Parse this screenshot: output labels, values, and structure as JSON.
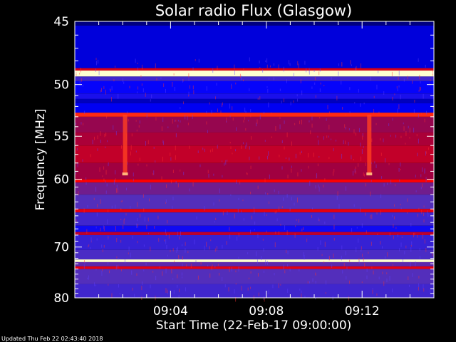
{
  "chart_data": {
    "type": "heatmap",
    "title": "Solar radio Flux (Glasgow)",
    "xlabel": "Start Time (22-Feb-17 09:00:00)",
    "ylabel": "Frequency [MHz]",
    "xlim_minutes": [
      0,
      15
    ],
    "ylim": [
      45,
      80
    ],
    "x_ticks": [
      {
        "minutes": 4,
        "label": "09:04"
      },
      {
        "minutes": 8,
        "label": "09:08"
      },
      {
        "minutes": 12,
        "label": "09:12"
      }
    ],
    "y_ticks": [
      {
        "value": 45,
        "label": "45"
      },
      {
        "value": 50,
        "label": "50"
      },
      {
        "value": 55,
        "label": "55"
      },
      {
        "value": 60,
        "label": "60"
      },
      {
        "value": 70,
        "label": "70"
      },
      {
        "value": 80,
        "label": "80"
      }
    ],
    "colormap": [
      "#000080",
      "#0000ff",
      "#5030c0",
      "#a00040",
      "#ff0000",
      "#ff8040",
      "#ffffd0"
    ],
    "frequency_bands": [
      {
        "from": 45.0,
        "to": 45.3,
        "level": 0.0
      },
      {
        "from": 45.3,
        "to": 48.6,
        "level": 0.12
      },
      {
        "from": 48.6,
        "to": 48.8,
        "level": 0.6
      },
      {
        "from": 48.8,
        "to": 49.3,
        "level": 1.0
      },
      {
        "from": 49.3,
        "to": 49.7,
        "level": 0.3
      },
      {
        "from": 49.7,
        "to": 50.8,
        "level": 0.18
      },
      {
        "from": 50.8,
        "to": 51.3,
        "level": 0.22
      },
      {
        "from": 51.3,
        "to": 51.7,
        "level": 0.08
      },
      {
        "from": 51.7,
        "to": 52.6,
        "level": 0.15
      },
      {
        "from": 52.6,
        "to": 53.0,
        "level": 0.72
      },
      {
        "from": 53.0,
        "to": 54.6,
        "level": 0.48
      },
      {
        "from": 54.6,
        "to": 56.0,
        "level": 0.52
      },
      {
        "from": 56.0,
        "to": 58.0,
        "level": 0.56
      },
      {
        "from": 58.0,
        "to": 60.0,
        "level": 0.5
      },
      {
        "from": 60.0,
        "to": 60.4,
        "level": 0.66
      },
      {
        "from": 60.4,
        "to": 62.0,
        "level": 0.4
      },
      {
        "from": 62.0,
        "to": 64.0,
        "level": 0.34
      },
      {
        "from": 64.0,
        "to": 64.5,
        "level": 0.62
      },
      {
        "from": 64.5,
        "to": 66.5,
        "level": 0.3
      },
      {
        "from": 66.5,
        "to": 67.5,
        "level": 0.2
      },
      {
        "from": 67.5,
        "to": 68.0,
        "level": 0.55
      },
      {
        "from": 68.0,
        "to": 70.5,
        "level": 0.28
      },
      {
        "from": 70.5,
        "to": 72.2,
        "level": 0.32
      },
      {
        "from": 72.2,
        "to": 72.7,
        "level": 1.0
      },
      {
        "from": 72.7,
        "to": 73.5,
        "level": 0.36
      },
      {
        "from": 73.5,
        "to": 74.0,
        "level": 0.62
      },
      {
        "from": 74.0,
        "to": 77.0,
        "level": 0.34
      },
      {
        "from": 77.0,
        "to": 80.0,
        "level": 0.3
      }
    ],
    "bursts": [
      {
        "minutes": 2.1,
        "from": 52.8,
        "to": 59.5,
        "level": 0.75
      },
      {
        "minutes": 12.3,
        "from": 52.8,
        "to": 59.5,
        "level": 0.75
      }
    ],
    "grid": false,
    "legend": "none"
  },
  "footer": {
    "updated": "Updated Thu Feb 22 02:43:40 2018"
  }
}
